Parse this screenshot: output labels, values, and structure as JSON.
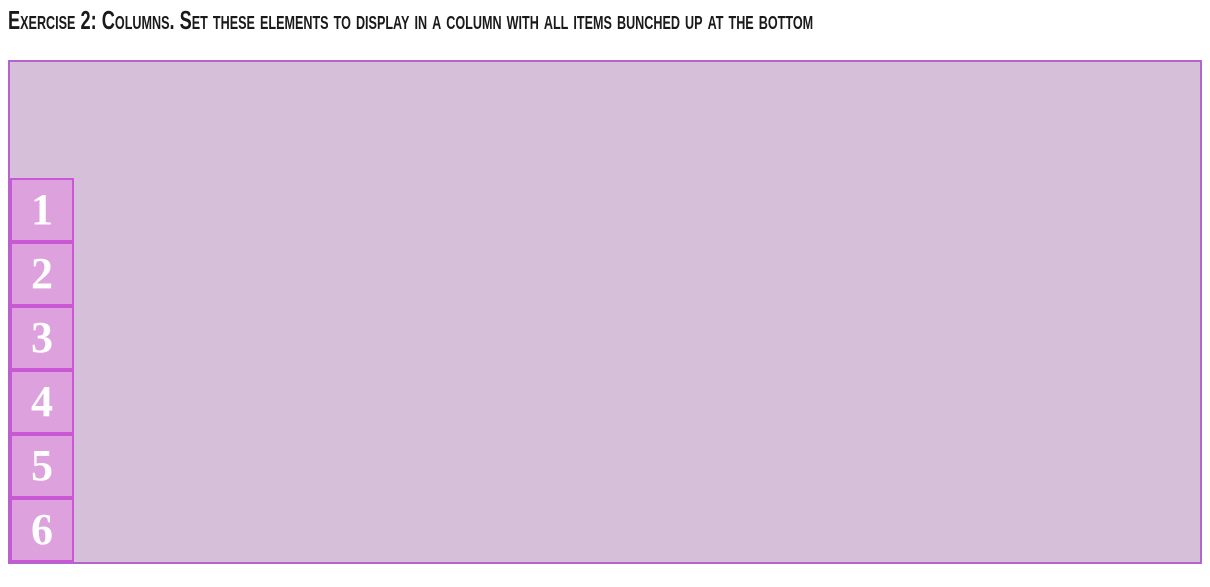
{
  "heading": "Exercise 2: Columns. Set these elements to display in a column with all items bunched up at the bottom",
  "items": [
    "1",
    "2",
    "3",
    "4",
    "5",
    "6"
  ],
  "colors": {
    "container_bg": "#d6bfd8",
    "container_border": "#b465cc",
    "item_bg": "#dda1de",
    "item_border": "#c957d6",
    "item_text": "#ffffff"
  }
}
